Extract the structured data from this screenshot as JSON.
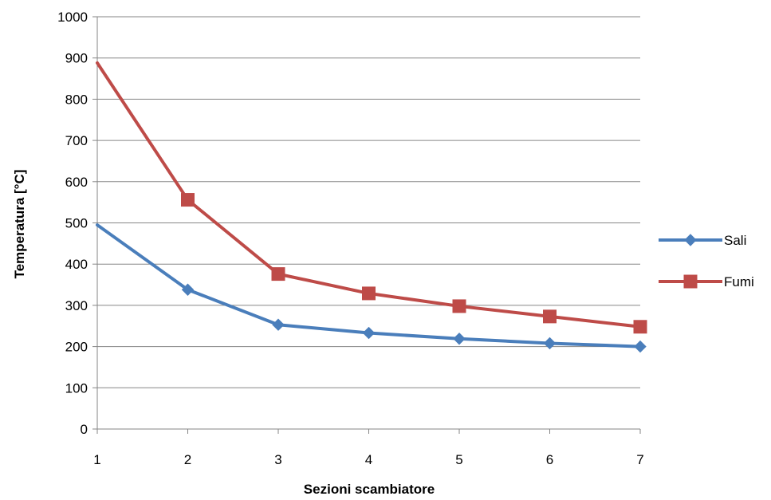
{
  "chart_data": {
    "type": "line",
    "title": "",
    "xlabel": "Sezioni scambiatore",
    "ylabel": "Temperatura [°C]",
    "x": [
      1,
      2,
      3,
      4,
      5,
      6,
      7
    ],
    "xticks": [
      "1",
      "2",
      "3",
      "4",
      "5",
      "6",
      "7"
    ],
    "ylim": [
      0,
      1000
    ],
    "yticks": [
      0,
      100,
      200,
      300,
      400,
      500,
      600,
      700,
      800,
      900,
      1000
    ],
    "grid": "horizontal",
    "legend_position": "right",
    "series": [
      {
        "name": "Sali",
        "color": "#4a7ebb",
        "marker": "diamond",
        "values": [
          495,
          338,
          253,
          233,
          219,
          208,
          200
        ]
      },
      {
        "name": "Fumi",
        "color": "#be4b48",
        "marker": "square",
        "values": [
          888,
          556,
          376,
          329,
          298,
          273,
          248
        ]
      }
    ]
  }
}
